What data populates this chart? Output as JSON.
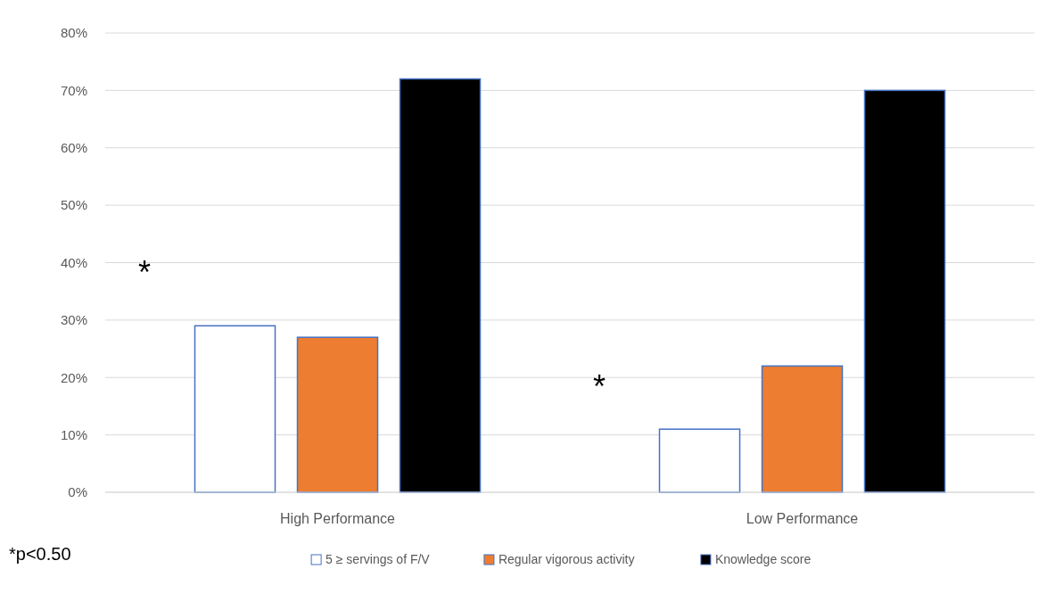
{
  "chart_data": {
    "type": "bar",
    "categories": [
      "High Performance",
      "Low Performance"
    ],
    "series": [
      {
        "name": "5 ≥ servings of F/V",
        "color": "#ffffff",
        "values": [
          29,
          11
        ]
      },
      {
        "name": "Regular vigorous activity",
        "color": "#ed7d31",
        "values": [
          27,
          22
        ]
      },
      {
        "name": "Knowledge score",
        "color": "#000000",
        "values": [
          72,
          70
        ]
      }
    ],
    "ylim": [
      0,
      80
    ],
    "yticks": [
      {
        "value": 0,
        "label": "0%"
      },
      {
        "value": 10,
        "label": "10%"
      },
      {
        "value": 20,
        "label": "20%"
      },
      {
        "value": 30,
        "label": "30%"
      },
      {
        "value": 40,
        "label": "40%"
      },
      {
        "value": 50,
        "label": "50%"
      },
      {
        "value": 60,
        "label": "60%"
      },
      {
        "value": 70,
        "label": "70%"
      },
      {
        "value": 80,
        "label": "80%"
      }
    ],
    "grid": "y",
    "legend": "bottom",
    "annotations": [
      "*",
      "*",
      "*p<0.50"
    ]
  }
}
